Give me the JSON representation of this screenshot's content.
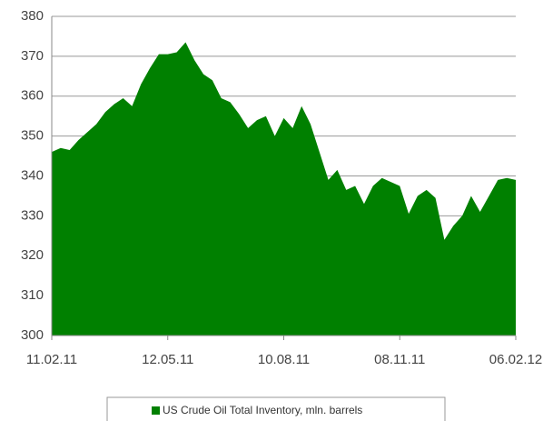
{
  "chart_data": {
    "type": "area",
    "categories": [
      "11.02.11",
      null,
      null,
      null,
      null,
      null,
      null,
      null,
      null,
      null,
      null,
      null,
      null,
      "12.05.11",
      null,
      null,
      null,
      null,
      null,
      null,
      null,
      null,
      null,
      null,
      null,
      null,
      "10.08.11",
      null,
      null,
      null,
      null,
      null,
      null,
      null,
      null,
      null,
      null,
      null,
      null,
      "08.11.11",
      null,
      null,
      null,
      null,
      null,
      null,
      null,
      null,
      null,
      null,
      null,
      null,
      "06.02.12"
    ],
    "series": [
      {
        "name": "US Crude Oil Total Inventory, mln. barrels",
        "color": "#008000",
        "values": [
          346,
          347,
          346.5,
          349,
          351,
          353,
          356,
          358,
          359.5,
          357.5,
          363,
          367,
          370.5,
          370.5,
          371,
          373.5,
          369,
          365.5,
          364,
          359.5,
          358.5,
          355.5,
          352,
          354,
          355,
          350,
          354.5,
          352,
          357.5,
          353,
          346,
          339,
          341.5,
          336.5,
          337.5,
          333,
          337.5,
          339.5,
          338.5,
          337.5,
          330.5,
          335,
          336.5,
          334.5,
          324,
          327.5,
          330,
          335,
          331,
          335,
          339,
          339.5,
          339
        ]
      }
    ],
    "ylim": [
      300,
      380
    ],
    "yticks": [
      300,
      310,
      320,
      330,
      340,
      350,
      360,
      370,
      380
    ],
    "grid": true
  }
}
